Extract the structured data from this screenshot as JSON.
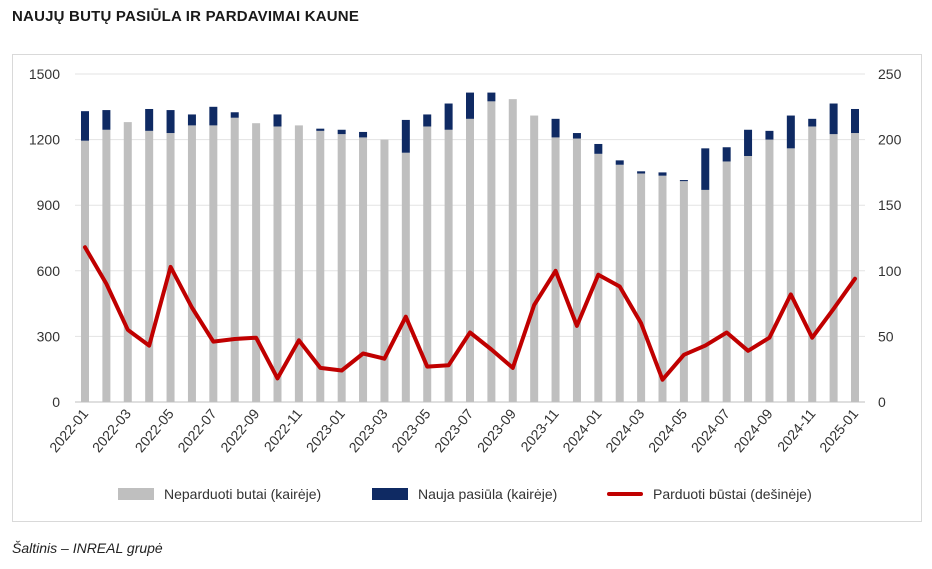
{
  "title": "NAUJŲ BUTŲ PASIŪLA IR PARDAVIMAI KAUNE",
  "source": "Šaltinis – INREAL grupė",
  "chart_data": {
    "type": "bar",
    "categories": [
      "2022-01",
      "2022-02",
      "2022-03",
      "2022-04",
      "2022-05",
      "2022-06",
      "2022-07",
      "2022-08",
      "2022-09",
      "2022-10",
      "2022-11",
      "2022-12",
      "2023-01",
      "2023-02",
      "2023-03",
      "2023-04",
      "2023-05",
      "2023-06",
      "2023-07",
      "2023-08",
      "2023-09",
      "2023-10",
      "2023-11",
      "2023-12",
      "2024-01",
      "2024-02",
      "2024-03",
      "2024-04",
      "2024-05",
      "2024-06",
      "2024-07",
      "2024-08",
      "2024-09",
      "2024-10",
      "2024-11",
      "2024-12",
      "2025-01"
    ],
    "tick_labels": [
      "2022-01",
      "2022-03",
      "2022-05",
      "2022-07",
      "2022-09",
      "2022-11",
      "2023-01",
      "2023-03",
      "2023-05",
      "2023-07",
      "2023-09",
      "2023-11",
      "2024-01",
      "2024-03",
      "2024-05",
      "2024-07",
      "2024-09",
      "2024-11",
      "2025-01"
    ],
    "series": [
      {
        "name": "Neparduoti butai (kairėje)",
        "axis": "left",
        "kind": "bar",
        "color": "#bfbfbf",
        "values": [
          1195,
          1245,
          1280,
          1240,
          1230,
          1265,
          1265,
          1300,
          1275,
          1260,
          1265,
          1240,
          1225,
          1210,
          1200,
          1140,
          1260,
          1245,
          1295,
          1375,
          1385,
          1310,
          1210,
          1205,
          1135,
          1085,
          1045,
          1035,
          1010,
          970,
          1100,
          1125,
          1200,
          1160,
          1260,
          1225,
          1230
        ]
      },
      {
        "name": "Nauja pasiūla (kairėje)",
        "axis": "left",
        "kind": "stack",
        "color": "#0f2a63",
        "values": [
          135,
          90,
          0,
          100,
          105,
          50,
          85,
          25,
          0,
          55,
          0,
          10,
          20,
          25,
          0,
          150,
          55,
          120,
          120,
          40,
          0,
          0,
          85,
          25,
          45,
          20,
          10,
          15,
          5,
          190,
          65,
          120,
          40,
          150,
          35,
          140,
          110
        ]
      },
      {
        "name": "Parduoti būstai (dešinėje)",
        "axis": "right",
        "kind": "line",
        "color": "#c00000",
        "values": [
          118,
          90,
          55,
          43,
          103,
          72,
          46,
          48,
          49,
          18,
          47,
          26,
          24,
          37,
          33,
          65,
          27,
          28,
          53,
          40,
          26,
          74,
          100,
          58,
          97,
          88,
          60,
          17,
          36,
          43,
          53,
          39,
          49,
          82,
          49,
          71,
          94
        ]
      }
    ],
    "left_axis": {
      "min": 0,
      "max": 1500,
      "ticks": [
        0,
        300,
        600,
        900,
        1200,
        1500
      ]
    },
    "right_axis": {
      "min": 0,
      "max": 250,
      "ticks": [
        0,
        50,
        100,
        150,
        200,
        250
      ]
    },
    "grid": true,
    "legend_position": "bottom"
  }
}
